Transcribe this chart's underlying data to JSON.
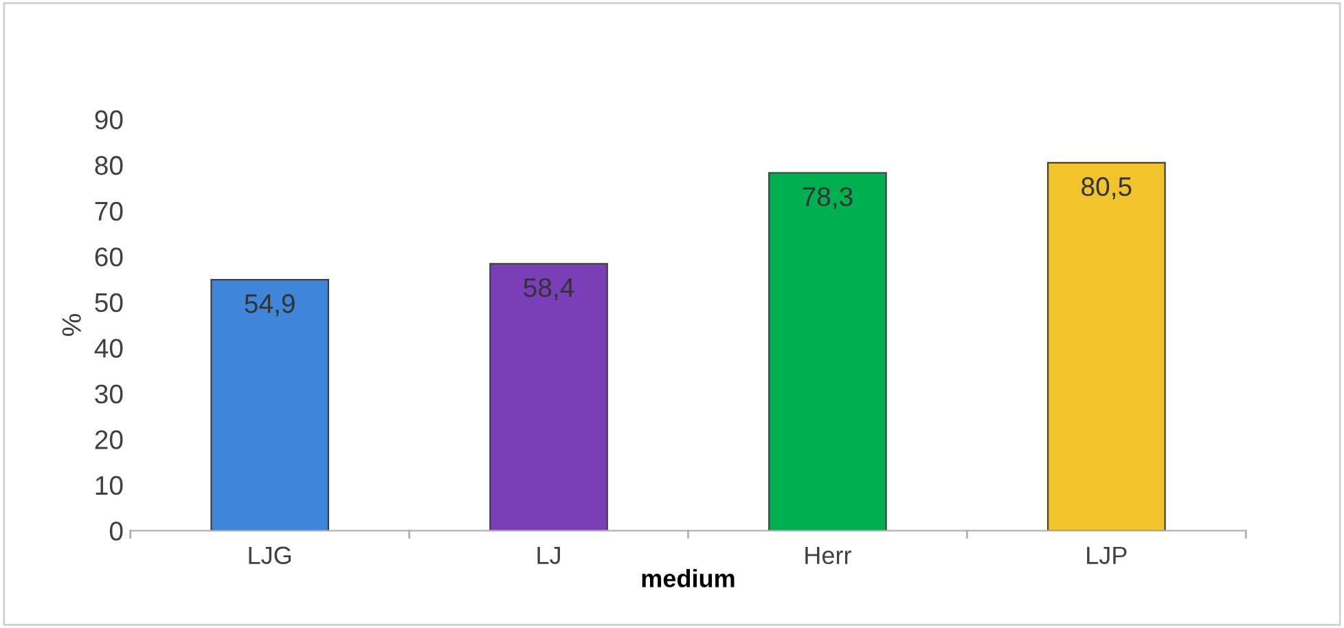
{
  "chart_data": {
    "type": "bar",
    "xlabel": "medium",
    "ylabel": "%",
    "categories": [
      "LJG",
      "LJ",
      "Herr",
      "LJP"
    ],
    "values": [
      54.9,
      58.4,
      78.3,
      80.5
    ],
    "colors": [
      "#3f86d8",
      "#7a3fb8",
      "#00b050",
      "#f2c42c"
    ],
    "value_labels": [
      "54,9",
      "58,4",
      "78,3",
      "80,5"
    ],
    "ylim": [
      0,
      90
    ],
    "yticks": [
      0,
      10,
      20,
      30,
      40,
      50,
      60,
      70,
      80,
      90
    ],
    "grid": false,
    "legend": false
  }
}
